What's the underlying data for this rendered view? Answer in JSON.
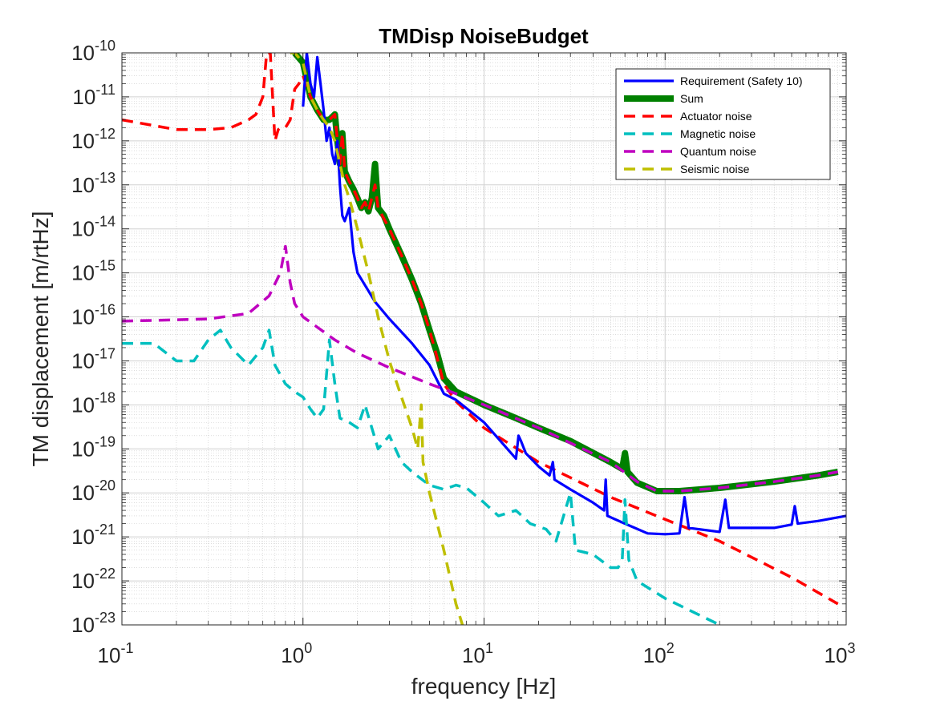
{
  "chart_data": {
    "type": "line",
    "title": "TMDisp NoiseBudget",
    "xlabel": "frequency [Hz]",
    "ylabel": "TM displacement [m/rtHz]",
    "xscale": "log",
    "yscale": "log",
    "xlim": [
      0.1,
      1000
    ],
    "ylim": [
      1e-23,
      1e-10
    ],
    "grid": true,
    "minor_grid": true,
    "legend_location": "top-right",
    "x_ticks": [
      {
        "value": 0.1,
        "base": "10",
        "exp": "-1"
      },
      {
        "value": 1,
        "base": "10",
        "exp": "0"
      },
      {
        "value": 10,
        "base": "10",
        "exp": "1"
      },
      {
        "value": 100,
        "base": "10",
        "exp": "2"
      },
      {
        "value": 1000,
        "base": "10",
        "exp": "3"
      }
    ],
    "y_ticks": [
      {
        "value": 1e-23,
        "base": "10",
        "exp": "-23"
      },
      {
        "value": 1e-22,
        "base": "10",
        "exp": "-22"
      },
      {
        "value": 1e-21,
        "base": "10",
        "exp": "-21"
      },
      {
        "value": 1e-20,
        "base": "10",
        "exp": "-20"
      },
      {
        "value": 1e-19,
        "base": "10",
        "exp": "-19"
      },
      {
        "value": 1e-18,
        "base": "10",
        "exp": "-18"
      },
      {
        "value": 1e-17,
        "base": "10",
        "exp": "-17"
      },
      {
        "value": 1e-16,
        "base": "10",
        "exp": "-16"
      },
      {
        "value": 1e-15,
        "base": "10",
        "exp": "-15"
      },
      {
        "value": 1e-14,
        "base": "10",
        "exp": "-14"
      },
      {
        "value": 1e-13,
        "base": "10",
        "exp": "-13"
      },
      {
        "value": 1e-12,
        "base": "10",
        "exp": "-12"
      },
      {
        "value": 1e-11,
        "base": "10",
        "exp": "-11"
      },
      {
        "value": 1e-10,
        "base": "10",
        "exp": "-10"
      }
    ],
    "series": [
      {
        "name": "Sum",
        "color": "#008000",
        "style": "solid-thick",
        "points": [
          [
            0.9,
            1e-10
          ],
          [
            1.0,
            6e-11
          ],
          [
            1.1,
            1e-11
          ],
          [
            1.2,
            5e-12
          ],
          [
            1.3,
            3e-12
          ],
          [
            1.4,
            3e-12
          ],
          [
            1.5,
            4e-12
          ],
          [
            1.55,
            1e-12
          ],
          [
            1.6,
            3e-13
          ],
          [
            1.65,
            1.5e-12
          ],
          [
            1.7,
            2e-13
          ],
          [
            1.8,
            1.2e-13
          ],
          [
            1.9,
            8e-14
          ],
          [
            2.0,
            5e-14
          ],
          [
            2.1,
            3e-14
          ],
          [
            2.2,
            4e-14
          ],
          [
            2.3,
            2.5e-14
          ],
          [
            2.4,
            5e-14
          ],
          [
            2.5,
            3e-13
          ],
          [
            2.6,
            3e-14
          ],
          [
            2.8,
            2e-14
          ],
          [
            3.0,
            1e-14
          ],
          [
            3.5,
            2.5e-15
          ],
          [
            4.0,
            7e-16
          ],
          [
            4.5,
            2e-16
          ],
          [
            5.0,
            5e-17
          ],
          [
            5.5,
            1.5e-17
          ],
          [
            6.0,
            4e-18
          ],
          [
            7.0,
            2e-18
          ],
          [
            10,
            1e-18
          ],
          [
            15,
            5e-19
          ],
          [
            20,
            3e-19
          ],
          [
            30,
            1.5e-19
          ],
          [
            50,
            5e-20
          ],
          [
            58,
            3.5e-20
          ],
          [
            60,
            8e-20
          ],
          [
            62,
            3e-20
          ],
          [
            70,
            1.7e-20
          ],
          [
            90,
            1.1e-20
          ],
          [
            120,
            1.1e-20
          ],
          [
            200,
            1.3e-20
          ],
          [
            400,
            1.8e-20
          ],
          [
            700,
            2.5e-20
          ],
          [
            900,
            3e-20
          ]
        ]
      },
      {
        "name": "Actuator noise",
        "color": "#ff0000",
        "style": "dashed",
        "points": [
          [
            0.1,
            3e-12
          ],
          [
            0.2,
            1.8e-12
          ],
          [
            0.3,
            1.8e-12
          ],
          [
            0.4,
            2e-12
          ],
          [
            0.5,
            3e-12
          ],
          [
            0.55,
            4e-12
          ],
          [
            0.6,
            1e-11
          ],
          [
            0.63,
            1e-10
          ],
          [
            0.66,
            1e-10
          ],
          [
            0.7,
            1e-12
          ],
          [
            0.73,
            1.8e-12
          ],
          [
            0.75,
            2e-12
          ],
          [
            0.8,
            2e-12
          ],
          [
            0.85,
            3e-12
          ],
          [
            0.9,
            1.5e-11
          ],
          [
            0.95,
            2e-11
          ],
          [
            1.0,
            3e-11
          ],
          [
            1.1,
            1e-11
          ],
          [
            1.2,
            5e-12
          ],
          [
            1.3,
            3e-12
          ],
          [
            1.4,
            3e-12
          ],
          [
            1.5,
            4e-12
          ],
          [
            1.55,
            1e-12
          ],
          [
            1.6,
            3e-13
          ],
          [
            1.65,
            1.5e-12
          ],
          [
            1.7,
            2e-13
          ],
          [
            1.8,
            1.2e-13
          ],
          [
            1.9,
            8e-14
          ],
          [
            2.0,
            5e-14
          ],
          [
            2.1,
            3e-14
          ],
          [
            2.2,
            4e-14
          ],
          [
            2.3,
            2.5e-14
          ],
          [
            2.5,
            1e-13
          ],
          [
            2.6,
            3e-14
          ],
          [
            3.0,
            1e-14
          ],
          [
            3.5,
            2.5e-15
          ],
          [
            4.0,
            7e-16
          ],
          [
            4.5,
            2e-16
          ],
          [
            5.0,
            5e-17
          ],
          [
            5.5,
            1.2e-17
          ],
          [
            6.0,
            3e-18
          ],
          [
            7.0,
            1.2e-18
          ],
          [
            10,
            3e-19
          ],
          [
            20,
            5e-20
          ],
          [
            50,
            8e-21
          ],
          [
            100,
            2.5e-21
          ],
          [
            200,
            8e-22
          ],
          [
            500,
            1.2e-22
          ],
          [
            900,
            3e-23
          ]
        ]
      },
      {
        "name": "Requirement (Safety 10)",
        "color": "#0000ff",
        "style": "solid",
        "points": [
          [
            1.0,
            6e-12
          ],
          [
            1.05,
            1e-10
          ],
          [
            1.1,
            2e-11
          ],
          [
            1.15,
            1e-11
          ],
          [
            1.2,
            8e-11
          ],
          [
            1.25,
            2e-11
          ],
          [
            1.3,
            5e-12
          ],
          [
            1.35,
            1e-12
          ],
          [
            1.4,
            2e-12
          ],
          [
            1.45,
            5e-13
          ],
          [
            1.5,
            3e-13
          ],
          [
            1.55,
            1e-12
          ],
          [
            1.6,
            1e-13
          ],
          [
            1.65,
            2e-14
          ],
          [
            1.7,
            1.5e-14
          ],
          [
            1.8,
            3e-14
          ],
          [
            1.9,
            3e-15
          ],
          [
            2.0,
            1e-15
          ],
          [
            2.5,
            2.2e-16
          ],
          [
            3.0,
            9e-17
          ],
          [
            4.0,
            2.5e-17
          ],
          [
            5.0,
            8e-18
          ],
          [
            6.0,
            1.8e-18
          ],
          [
            7.0,
            1.3e-18
          ],
          [
            10,
            4e-19
          ],
          [
            15,
            6e-20
          ],
          [
            15.5,
            2e-19
          ],
          [
            16,
            1.5e-19
          ],
          [
            17,
            8e-20
          ],
          [
            20,
            4e-20
          ],
          [
            23,
            2.5e-20
          ],
          [
            24,
            5e-20
          ],
          [
            24.5,
            2e-20
          ],
          [
            30,
            1.2e-20
          ],
          [
            40,
            6e-21
          ],
          [
            46,
            4e-21
          ],
          [
            47,
            2e-20
          ],
          [
            48,
            3e-21
          ],
          [
            60,
            2e-21
          ],
          [
            80,
            1.2e-21
          ],
          [
            100,
            1.15e-21
          ],
          [
            120,
            1.2e-21
          ],
          [
            128,
            8e-21
          ],
          [
            135,
            1.6e-21
          ],
          [
            200,
            1.3e-21
          ],
          [
            215,
            7e-21
          ],
          [
            225,
            1.6e-21
          ],
          [
            400,
            1.6e-21
          ],
          [
            500,
            1.9e-21
          ],
          [
            520,
            5e-21
          ],
          [
            540,
            2e-21
          ],
          [
            700,
            2.3e-21
          ],
          [
            1000,
            3e-21
          ]
        ]
      },
      {
        "name": "Magnetic noise",
        "color": "#00bfbf",
        "style": "dashed",
        "points": [
          [
            0.1,
            2.5e-17
          ],
          [
            0.15,
            2.5e-17
          ],
          [
            0.2,
            1e-17
          ],
          [
            0.25,
            1e-17
          ],
          [
            0.3,
            3e-17
          ],
          [
            0.35,
            5e-17
          ],
          [
            0.4,
            2e-17
          ],
          [
            0.5,
            8e-18
          ],
          [
            0.6,
            2e-17
          ],
          [
            0.65,
            5e-17
          ],
          [
            0.7,
            8e-18
          ],
          [
            0.8,
            3e-18
          ],
          [
            0.9,
            2e-18
          ],
          [
            1.0,
            1.5e-18
          ],
          [
            1.1,
            8e-19
          ],
          [
            1.2,
            5e-19
          ],
          [
            1.3,
            8e-19
          ],
          [
            1.4,
            3e-17
          ],
          [
            1.5,
            3e-18
          ],
          [
            1.6,
            5e-19
          ],
          [
            1.8,
            4e-19
          ],
          [
            2.0,
            3e-19
          ],
          [
            2.2,
            1e-18
          ],
          [
            2.4,
            3e-19
          ],
          [
            2.6,
            1e-19
          ],
          [
            3.0,
            2e-19
          ],
          [
            3.5,
            5e-20
          ],
          [
            4.0,
            3e-20
          ],
          [
            5.0,
            1.5e-20
          ],
          [
            6.0,
            1.2e-20
          ],
          [
            7.0,
            1.5e-20
          ],
          [
            8.0,
            1.3e-20
          ],
          [
            10,
            6e-21
          ],
          [
            12,
            3e-21
          ],
          [
            15,
            4e-21
          ],
          [
            18,
            2e-21
          ],
          [
            22,
            1.5e-21
          ],
          [
            25,
            8e-22
          ],
          [
            30,
            1e-20
          ],
          [
            32,
            5e-22
          ],
          [
            40,
            4e-22
          ],
          [
            50,
            2e-22
          ],
          [
            55,
            2e-22
          ],
          [
            58,
            3e-22
          ],
          [
            60,
            7e-21
          ],
          [
            63,
            3e-22
          ],
          [
            70,
            1e-22
          ],
          [
            100,
            4e-23
          ],
          [
            200,
            1e-23
          ]
        ]
      },
      {
        "name": "Quantum noise",
        "color": "#bf00bf",
        "style": "dashed",
        "points": [
          [
            0.1,
            8e-17
          ],
          [
            0.3,
            9e-17
          ],
          [
            0.5,
            1.2e-16
          ],
          [
            0.65,
            3e-16
          ],
          [
            0.75,
            1e-15
          ],
          [
            0.8,
            4e-15
          ],
          [
            0.85,
            6e-16
          ],
          [
            0.9,
            2e-16
          ],
          [
            1.0,
            1e-16
          ],
          [
            1.5,
            3e-17
          ],
          [
            2.0,
            1.5e-17
          ],
          [
            3.0,
            7e-18
          ],
          [
            5.0,
            3e-18
          ],
          [
            7.0,
            1.8e-18
          ],
          [
            10,
            1e-18
          ],
          [
            20,
            3e-19
          ],
          [
            50,
            5e-20
          ],
          [
            70,
            1.8e-20
          ],
          [
            90,
            1.1e-20
          ],
          [
            120,
            1.1e-20
          ],
          [
            200,
            1.3e-20
          ],
          [
            400,
            1.8e-20
          ],
          [
            700,
            2.5e-20
          ],
          [
            900,
            3e-20
          ]
        ]
      },
      {
        "name": "Seismic noise",
        "color": "#bfbf00",
        "style": "dashed",
        "points": [
          [
            0.85,
            1e-10
          ],
          [
            0.9,
            1e-10
          ],
          [
            1.0,
            6e-11
          ],
          [
            1.1,
            1e-11
          ],
          [
            1.2,
            5e-12
          ],
          [
            1.3,
            3e-12
          ],
          [
            1.4,
            2e-12
          ],
          [
            1.5,
            1e-12
          ],
          [
            1.6,
            3e-13
          ],
          [
            1.7,
            1e-13
          ],
          [
            1.8,
            5e-14
          ],
          [
            2.0,
            1e-14
          ],
          [
            2.3,
            1e-15
          ],
          [
            2.6,
            1e-16
          ],
          [
            3.0,
            1e-17
          ],
          [
            3.5,
            1.5e-18
          ],
          [
            4.0,
            3e-19
          ],
          [
            4.3,
            1e-19
          ],
          [
            4.5,
            1e-18
          ],
          [
            4.6,
            5e-20
          ],
          [
            5.0,
            1e-20
          ],
          [
            6.0,
            5e-22
          ],
          [
            7.0,
            3e-23
          ],
          [
            8.0,
            5e-24
          ]
        ]
      }
    ],
    "legend": [
      {
        "label": "Requirement (Safety 10)",
        "color": "#0000ff",
        "style": "solid"
      },
      {
        "label": "Sum",
        "color": "#008000",
        "style": "solid-thick"
      },
      {
        "label": "Actuator noise",
        "color": "#ff0000",
        "style": "dashed"
      },
      {
        "label": "Magnetic noise",
        "color": "#00bfbf",
        "style": "dashed"
      },
      {
        "label": "Quantum noise",
        "color": "#bf00bf",
        "style": "dashed"
      },
      {
        "label": "Seismic noise",
        "color": "#bfbf00",
        "style": "dashed"
      }
    ],
    "extra_segments": [
      {
        "color": "#bfbf00",
        "style": "dashed",
        "points": [
          [
            19,
            1e-23
          ],
          [
            20,
            5e-24
          ]
        ]
      }
    ]
  }
}
